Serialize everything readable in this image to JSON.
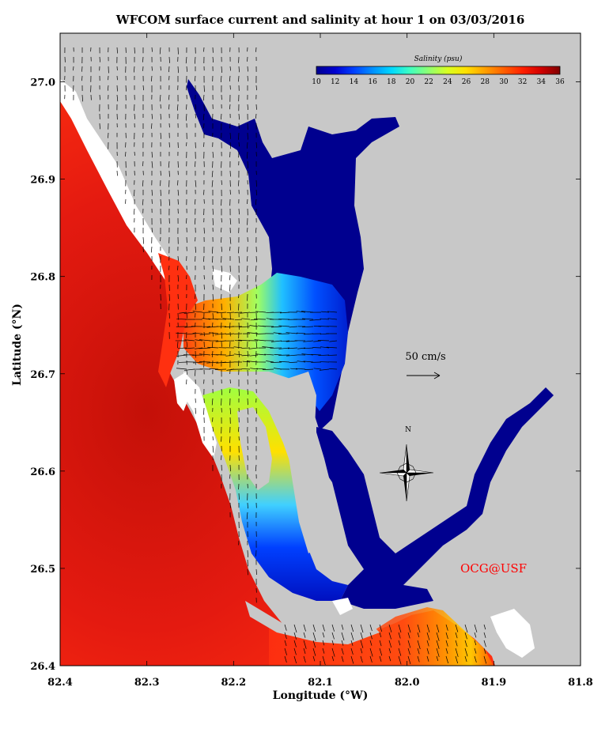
{
  "title": "WFCOM surface current and salinity at hour 1 on 03/03/2016",
  "xlabel": "Longitude (°W)",
  "ylabel": "Latitude (°N)",
  "credit": "OCG@USF",
  "credit_color": "#ff0000",
  "scale_arrow": {
    "label": "50 cm/s",
    "value": 50
  },
  "compass": {
    "label": "N"
  },
  "colorbar": {
    "title": "Salinity (psu)",
    "min": 10,
    "max": 36,
    "ticks": [
      "10",
      "12",
      "14",
      "16",
      "18",
      "20",
      "22",
      "24",
      "26",
      "28",
      "30",
      "32",
      "34",
      "36"
    ],
    "colors": [
      "#00008f",
      "#0000d0",
      "#0040ff",
      "#0090ff",
      "#00d8ff",
      "#40ffc0",
      "#90ff70",
      "#d8ff20",
      "#ffe000",
      "#ffa000",
      "#ff6000",
      "#ff2000",
      "#d00000",
      "#800000"
    ]
  },
  "colors": {
    "land": "#c8c8c8",
    "gulf": "#e41a10",
    "coast_line": "#000000"
  },
  "chart_data": {
    "type": "heatmap",
    "title": "WFCOM surface current and salinity at hour 1 on 03/03/2016",
    "xlabel": "Longitude (°W)",
    "ylabel": "Latitude (°N)",
    "x_ticks": [
      "82.4",
      "82.3",
      "82.2",
      "82.1",
      "82.0",
      "81.9",
      "81.8"
    ],
    "y_ticks": [
      "27.0",
      "26.9",
      "26.8",
      "26.7",
      "26.6",
      "26.5",
      "26.4"
    ],
    "xlim": [
      82.4,
      81.8
    ],
    "ylim": [
      26.4,
      27.05
    ],
    "variable": "Salinity (psu)",
    "vector_field": "surface current"
  }
}
